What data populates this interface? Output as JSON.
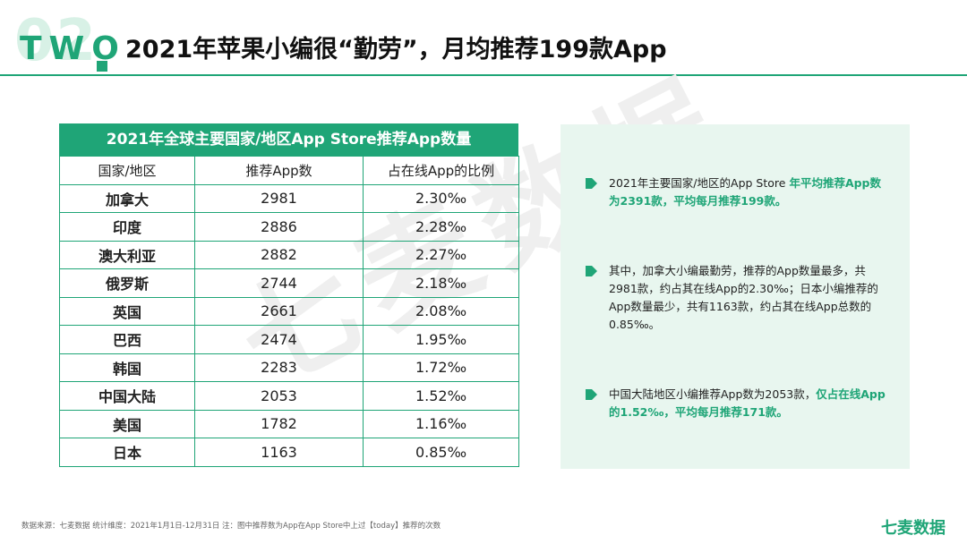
{
  "header": {
    "section_number": "02",
    "section_word": "TWO",
    "title": "2021年苹果小编很“勤劳”，月均推荐199款App"
  },
  "watermark": "七麦数据",
  "table": {
    "caption": "2021年全球主要国家/地区App Store推荐App数量",
    "columns": [
      "国家/地区",
      "推荐App数",
      "占在线App的比例"
    ],
    "rows": [
      {
        "country": "加拿大",
        "count": "2981",
        "ratio": "2.30‰"
      },
      {
        "country": "印度",
        "count": "2886",
        "ratio": "2.28‰"
      },
      {
        "country": "澳大利亚",
        "count": "2882",
        "ratio": "2.27‰"
      },
      {
        "country": "俄罗斯",
        "count": "2744",
        "ratio": "2.18‰"
      },
      {
        "country": "英国",
        "count": "2661",
        "ratio": "2.08‰"
      },
      {
        "country": "巴西",
        "count": "2474",
        "ratio": "1.95‰"
      },
      {
        "country": "韩国",
        "count": "2283",
        "ratio": "1.72‰"
      },
      {
        "country": "中国大陆",
        "count": "2053",
        "ratio": "1.52‰"
      },
      {
        "country": "美国",
        "count": "1782",
        "ratio": "1.16‰"
      },
      {
        "country": "日本",
        "count": "1163",
        "ratio": "0.85‰"
      }
    ]
  },
  "panel": {
    "b1": {
      "plain": "2021年主要国家/地区的App Store ",
      "highlight": "年平均推荐App数为2391款，平均每月推荐199款。"
    },
    "b2": {
      "plain": "其中，加拿大小编最勤劳，推荐的App数量最多，共2981款，约占其在线App的2.30‰；日本小编推荐的App数量最少，共有1163款，约占其在线App总数的0.85‰。"
    },
    "b3": {
      "plain": "中国大陆地区小编推荐App数为2053款，",
      "highlight": "仅占在线App的1.52‰，平均每月推荐171款。"
    }
  },
  "footer": {
    "note": "数据来源：七麦数据  统计维度：2021年1月1日-12月31日  注：图中推荐数为App在App Store中上过【today】推荐的次数",
    "brand": "七麦数据"
  },
  "colors": {
    "accent": "#1fa577",
    "panel_bg": "#e8f6ef"
  }
}
